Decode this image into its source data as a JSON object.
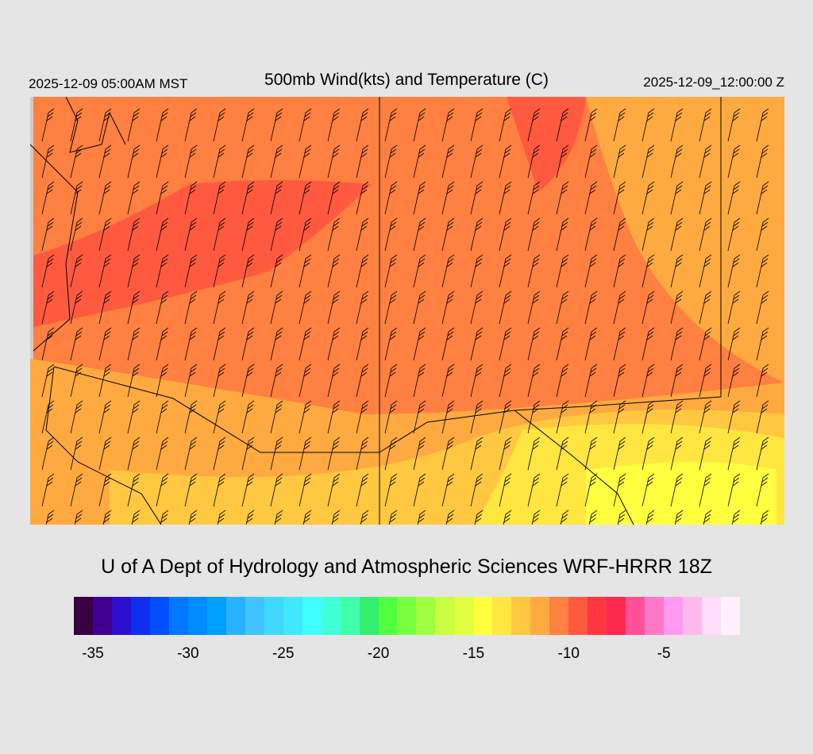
{
  "header": {
    "valid_local": "2025-12-09 05:00AM MST",
    "title": "500mb Wind(kts) and Temperature (C)",
    "valid_utc": "2025-12-09_12:00:00 Z"
  },
  "footer": {
    "credit": "U of A Dept of Hydrology and Atmospheric Sciences WRF-HRRR 18Z"
  },
  "colorbar": {
    "min": -36,
    "max": -1,
    "step": 1,
    "colors": [
      "#3a0040",
      "#3f008f",
      "#2c0fcf",
      "#0f2ef0",
      "#0050ff",
      "#0078ff",
      "#008cff",
      "#00a0ff",
      "#29b2ff",
      "#40c4ff",
      "#40d8ff",
      "#40e8ff",
      "#40ffff",
      "#40ffd8",
      "#40ffaa",
      "#33f070",
      "#4fff40",
      "#7aff40",
      "#a0ff40",
      "#c8ff40",
      "#e0ff40",
      "#ffff40",
      "#ffe640",
      "#ffc840",
      "#ffaa40",
      "#ff8040",
      "#ff5a40",
      "#ff3640",
      "#ff2850",
      "#ff509a",
      "#ff78c8",
      "#ff9af0",
      "#ffb8ec",
      "#ffdcfa",
      "#fff0fc"
    ],
    "labels": [
      "-35",
      "-30",
      "-25",
      "-20",
      "-15",
      "-10",
      "-5"
    ],
    "label_values": [
      -35,
      -30,
      -25,
      -20,
      -15,
      -10,
      -5
    ]
  },
  "map": {
    "field": "500mb temperature (C)",
    "overlay": "wind barbs (kts)",
    "region": "US Southwest"
  }
}
